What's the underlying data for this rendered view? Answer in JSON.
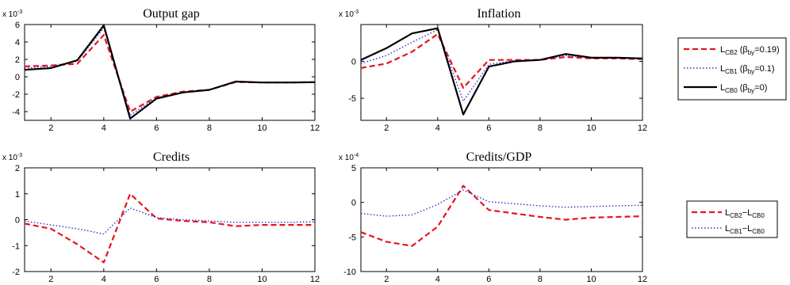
{
  "chart_data": [
    {
      "type": "line",
      "title": "Output gap",
      "scale_label": "x 10",
      "scale_exp": "-3",
      "x": [
        1,
        2,
        3,
        4,
        5,
        6,
        7,
        8,
        9,
        10,
        11,
        12
      ],
      "xlim": [
        1,
        12
      ],
      "xticks": [
        2,
        4,
        6,
        8,
        10,
        12
      ],
      "ylim": [
        -5,
        6
      ],
      "yticks": [
        -4,
        -2,
        0,
        2,
        4,
        6
      ],
      "series": [
        {
          "key": "cb2",
          "values": [
            1.2,
            1.3,
            1.5,
            4.8,
            -4.0,
            -2.3,
            -1.7,
            -1.5,
            -0.6,
            -0.65,
            -0.65,
            -0.62
          ]
        },
        {
          "key": "cb1",
          "values": [
            1.0,
            1.2,
            1.8,
            5.6,
            -4.4,
            -2.4,
            -1.8,
            -1.5,
            -0.6,
            -0.65,
            -0.65,
            -0.62
          ]
        },
        {
          "key": "cb0",
          "values": [
            0.8,
            1.0,
            1.9,
            5.9,
            -4.8,
            -2.5,
            -1.8,
            -1.5,
            -0.55,
            -0.65,
            -0.65,
            -0.62
          ]
        }
      ]
    },
    {
      "type": "line",
      "title": "Inflation",
      "scale_label": "x 10",
      "scale_exp": "-3",
      "x": [
        1,
        2,
        3,
        4,
        5,
        6,
        7,
        8,
        9,
        10,
        11,
        12
      ],
      "xlim": [
        1,
        12
      ],
      "xticks": [
        2,
        4,
        6,
        8,
        10,
        12
      ],
      "ylim": [
        -8,
        5
      ],
      "yticks": [
        -5,
        0
      ],
      "series": [
        {
          "key": "cb2",
          "values": [
            -0.9,
            -0.3,
            1.3,
            3.7,
            -3.6,
            0.2,
            0.2,
            0.2,
            0.6,
            0.4,
            0.4,
            0.3
          ]
        },
        {
          "key": "cb1",
          "values": [
            -0.3,
            0.8,
            2.6,
            4.3,
            -5.4,
            -0.4,
            0.1,
            0.2,
            0.8,
            0.5,
            0.5,
            0.4
          ]
        },
        {
          "key": "cb0",
          "values": [
            0.2,
            1.8,
            3.8,
            4.5,
            -7.2,
            -0.7,
            0.0,
            0.2,
            1.0,
            0.5,
            0.5,
            0.4
          ]
        }
      ]
    },
    {
      "type": "line",
      "title": "Credits",
      "scale_label": "x 10",
      "scale_exp": "-3",
      "x": [
        1,
        2,
        3,
        4,
        5,
        6,
        7,
        8,
        9,
        10,
        11,
        12
      ],
      "xlim": [
        1,
        12
      ],
      "xticks": [
        2,
        4,
        6,
        8,
        10,
        12
      ],
      "ylim": [
        -2,
        2
      ],
      "yticks": [
        -2,
        -1,
        0,
        1,
        2
      ],
      "series": [
        {
          "key": "d2",
          "values": [
            -0.15,
            -0.35,
            -0.95,
            -1.65,
            1.0,
            0.05,
            -0.05,
            -0.1,
            -0.25,
            -0.2,
            -0.2,
            -0.2
          ]
        },
        {
          "key": "d1",
          "values": [
            -0.05,
            -0.2,
            -0.35,
            -0.55,
            0.45,
            0.08,
            0.0,
            -0.05,
            -0.1,
            -0.1,
            -0.1,
            -0.08
          ]
        }
      ]
    },
    {
      "type": "line",
      "title": "Credits/GDP",
      "scale_label": "x 10",
      "scale_exp": "-4",
      "x": [
        1,
        2,
        3,
        4,
        5,
        6,
        7,
        8,
        9,
        10,
        11,
        12
      ],
      "xlim": [
        1,
        12
      ],
      "xticks": [
        2,
        4,
        6,
        8,
        10,
        12
      ],
      "ylim": [
        -10,
        5
      ],
      "yticks": [
        -10,
        -5,
        0,
        5
      ],
      "series": [
        {
          "key": "d2",
          "values": [
            -4.3,
            -5.7,
            -6.3,
            -3.5,
            2.4,
            -1.1,
            -1.6,
            -2.1,
            -2.5,
            -2.2,
            -2.1,
            -2.0
          ]
        },
        {
          "key": "d1",
          "values": [
            -1.6,
            -2.0,
            -1.8,
            -0.3,
            1.8,
            0.1,
            -0.2,
            -0.5,
            -0.7,
            -0.6,
            -0.5,
            -0.4
          ]
        }
      ]
    }
  ],
  "series_styles": {
    "cb2": {
      "color": "#e8141c",
      "dash": "7,4",
      "width": 2.2
    },
    "cb1": {
      "color": "#3030c8",
      "dash": "1.5,2.5",
      "width": 1.4
    },
    "cb0": {
      "color": "#000000",
      "dash": "",
      "width": 2.2
    },
    "d2": {
      "color": "#e8141c",
      "dash": "7,4",
      "width": 2.2
    },
    "d1": {
      "color": "#3030c8",
      "dash": "1.5,2.5",
      "width": 1.4
    }
  },
  "legend_top": [
    {
      "key": "cb2",
      "main": "L",
      "sub": "CB2",
      "param": "β",
      "psub": "by",
      "value": "=0.19)"
    },
    {
      "key": "cb1",
      "main": "L",
      "sub": "CB1",
      "param": "β",
      "psub": "by",
      "value": "=0.1)"
    },
    {
      "key": "cb0",
      "main": "L",
      "sub": "CB0",
      "param": "β",
      "psub": "by",
      "value": "=0)"
    }
  ],
  "legend_bottom": [
    {
      "key": "d2",
      "a": "L",
      "asub": "CB2",
      "b": "L",
      "bsub": "CB0"
    },
    {
      "key": "d1",
      "a": "L",
      "asub": "CB1",
      "b": "L",
      "bsub": "CB0"
    }
  ]
}
